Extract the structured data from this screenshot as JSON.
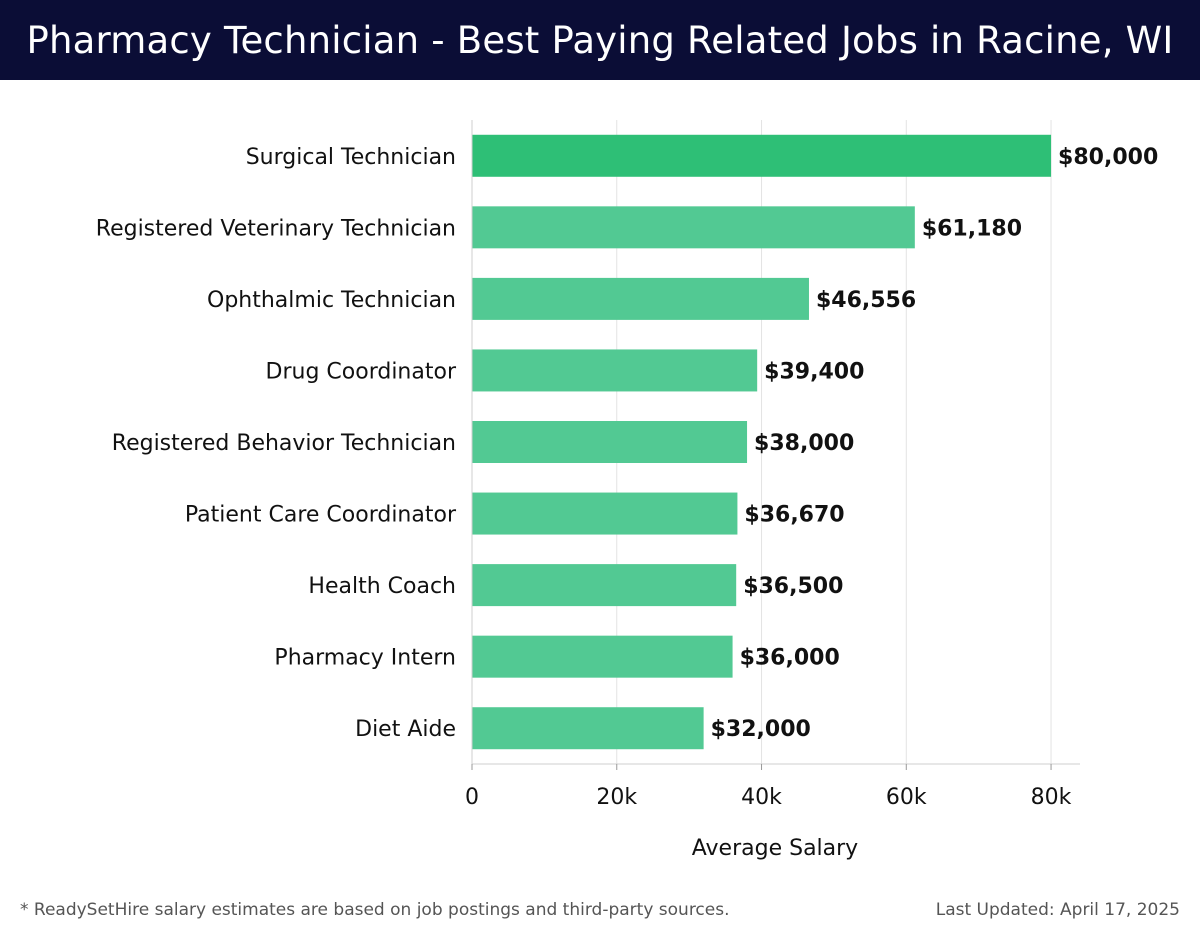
{
  "header": {
    "title": "Pharmacy Technician - Best Paying Related Jobs in Racine, WI"
  },
  "footer": {
    "note": "* ReadySetHire salary estimates are based on job postings and third-party sources.",
    "updated": "Last Updated: April 17, 2025"
  },
  "colors": {
    "header_bg": "#0b0d36",
    "bar_top": "#2ebf76",
    "bar": "#52c993"
  },
  "chart_data": {
    "type": "bar",
    "orientation": "horizontal",
    "categories": [
      "Surgical Technician",
      "Registered Veterinary Technician",
      "Ophthalmic Technician",
      "Drug Coordinator",
      "Registered Behavior Technician",
      "Patient Care Coordinator",
      "Health Coach",
      "Pharmacy Intern",
      "Diet Aide"
    ],
    "values": [
      80000,
      61180,
      46556,
      39400,
      38000,
      36670,
      36500,
      36000,
      32000
    ],
    "value_labels": [
      "$80,000",
      "$61,180",
      "$46,556",
      "$39,400",
      "$38,000",
      "$36,670",
      "$36,500",
      "$36,000",
      "$32,000"
    ],
    "xlabel": "Average Salary",
    "ylabel": "",
    "xlim": [
      0,
      84000
    ],
    "xticks": [
      0,
      20000,
      40000,
      60000,
      80000
    ],
    "xtick_labels": [
      "0",
      "20k",
      "40k",
      "60k",
      "80k"
    ],
    "grid": true
  }
}
